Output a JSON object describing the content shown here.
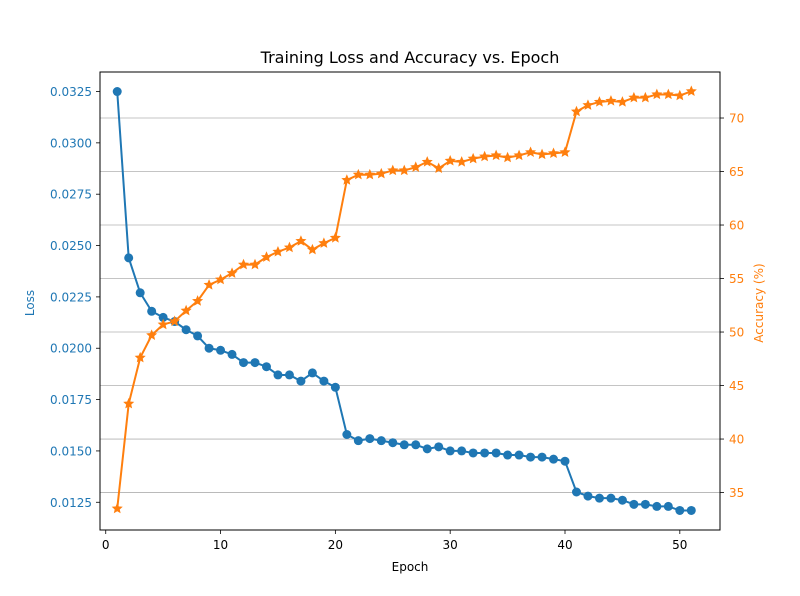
{
  "chart_data": {
    "type": "line",
    "title": "Training Loss and Accuracy vs. Epoch",
    "xlabel": "Epoch",
    "xlim": [
      -0.5,
      53.5
    ],
    "xticks": [
      0,
      10,
      20,
      30,
      40,
      50
    ],
    "left_axis": {
      "label": "Loss",
      "color": "#1f77b4",
      "ylim": [
        0.01115,
        0.03345
      ],
      "ticks": [
        0.0125,
        0.015,
        0.0175,
        0.02,
        0.0225,
        0.025,
        0.0275,
        0.03,
        0.0325
      ],
      "tick_labels": [
        "0.0125",
        "0.0150",
        "0.0175",
        "0.0200",
        "0.0225",
        "0.0250",
        "0.0275",
        "0.0300",
        "0.0325"
      ]
    },
    "right_axis": {
      "label": "Accuracy (%)",
      "color": "#ff7f0e",
      "ylim": [
        31.5,
        74.3
      ],
      "ticks": [
        35,
        40,
        45,
        50,
        55,
        60,
        65,
        70
      ],
      "tick_labels": [
        "35",
        "40",
        "45",
        "50",
        "55",
        "60",
        "65",
        "70"
      ],
      "grid": true
    },
    "series": [
      {
        "name": "Loss",
        "axis": "left",
        "color": "#1f77b4",
        "marker": "circle",
        "x": [
          1,
          2,
          3,
          4,
          5,
          6,
          7,
          8,
          9,
          10,
          11,
          12,
          13,
          14,
          15,
          16,
          17,
          18,
          19,
          20,
          21,
          22,
          23,
          24,
          25,
          26,
          27,
          28,
          29,
          30,
          31,
          32,
          33,
          34,
          35,
          36,
          37,
          38,
          39,
          40,
          41,
          42,
          43,
          44,
          45,
          46,
          47,
          48,
          49,
          50,
          51
        ],
        "values": [
          0.0325,
          0.0244,
          0.0227,
          0.0218,
          0.0215,
          0.0213,
          0.0209,
          0.0206,
          0.02,
          0.0199,
          0.0197,
          0.0193,
          0.0193,
          0.0191,
          0.0187,
          0.0187,
          0.0184,
          0.0188,
          0.0184,
          0.0181,
          0.0158,
          0.0155,
          0.0156,
          0.0155,
          0.0154,
          0.0153,
          0.0153,
          0.0151,
          0.0152,
          0.015,
          0.015,
          0.0149,
          0.0149,
          0.0149,
          0.0148,
          0.0148,
          0.0147,
          0.0147,
          0.0146,
          0.0145,
          0.013,
          0.0128,
          0.0127,
          0.0127,
          0.0126,
          0.0124,
          0.0124,
          0.0123,
          0.0123,
          0.0121,
          0.0121
        ]
      },
      {
        "name": "Accuracy",
        "axis": "right",
        "color": "#ff7f0e",
        "marker": "star",
        "x": [
          1,
          2,
          3,
          4,
          5,
          6,
          7,
          8,
          9,
          10,
          11,
          12,
          13,
          14,
          15,
          16,
          17,
          18,
          19,
          20,
          21,
          22,
          23,
          24,
          25,
          26,
          27,
          28,
          29,
          30,
          31,
          32,
          33,
          34,
          35,
          36,
          37,
          38,
          39,
          40,
          41,
          42,
          43,
          44,
          45,
          46,
          47,
          48,
          49,
          50,
          51
        ],
        "values": [
          33.5,
          43.3,
          47.6,
          49.7,
          50.7,
          51.0,
          52.0,
          52.9,
          54.4,
          54.9,
          55.5,
          56.3,
          56.3,
          57.0,
          57.5,
          57.9,
          58.5,
          57.7,
          58.3,
          58.8,
          64.2,
          64.7,
          64.7,
          64.8,
          65.1,
          65.1,
          65.4,
          65.9,
          65.3,
          66.0,
          65.9,
          66.2,
          66.4,
          66.5,
          66.3,
          66.5,
          66.8,
          66.6,
          66.7,
          66.8,
          70.6,
          71.2,
          71.5,
          71.6,
          71.5,
          71.9,
          71.9,
          72.2,
          72.2,
          72.1,
          72.5
        ]
      }
    ]
  }
}
